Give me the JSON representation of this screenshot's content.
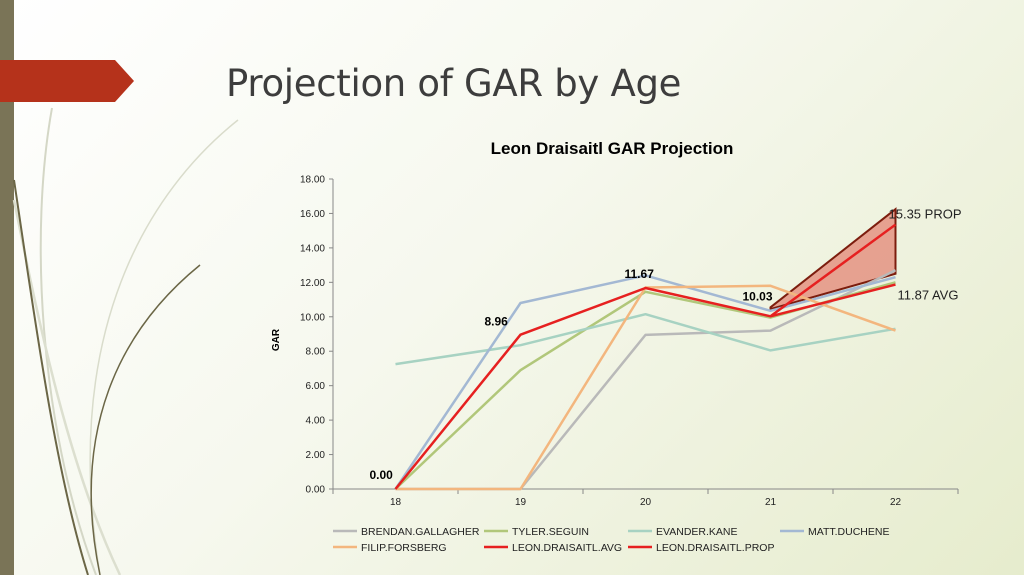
{
  "slide": {
    "title": "Projection of GAR by Age"
  },
  "colors": {
    "left_bar": "#7a7457",
    "red_tab": "#b5321b",
    "swoosh_light": "#d4d7c6",
    "swoosh_dark": "#6b6646",
    "band_fill": "#e07466",
    "band_outline": "#7c1d0e"
  },
  "chart_data": {
    "type": "line",
    "title": "Leon Draisaitl GAR Projection",
    "xlabel": "",
    "ylabel": "GAR",
    "x": [
      "18",
      "19",
      "20",
      "21",
      "22"
    ],
    "ylim": [
      0,
      18
    ],
    "y_ticks": [
      "0.00",
      "2.00",
      "4.00",
      "6.00",
      "8.00",
      "10.00",
      "12.00",
      "14.00",
      "16.00",
      "18.00"
    ],
    "grid": false,
    "legend_position": "bottom",
    "series": [
      {
        "name": "BRENDAN.GALLAGHER",
        "color": "#b9b9b9",
        "width": 2.5,
        "values": [
          0,
          0,
          8.95,
          9.2,
          12.7
        ]
      },
      {
        "name": "TYLER.SEGUIN",
        "color": "#b1c77a",
        "width": 2.5,
        "values": [
          0,
          6.9,
          11.45,
          9.95,
          12.0
        ]
      },
      {
        "name": "EVANDER.KANE",
        "color": "#a7d2c2",
        "width": 2.5,
        "values": [
          7.25,
          8.35,
          10.15,
          8.05,
          9.3
        ]
      },
      {
        "name": "MATT.DUCHENE",
        "color": "#a3b8d3",
        "width": 2.5,
        "values": [
          0,
          10.8,
          12.4,
          10.35,
          12.3
        ]
      },
      {
        "name": "FILIP.FORSBERG",
        "color": "#f3b67e",
        "width": 2.5,
        "values": [
          0,
          0,
          11.7,
          11.8,
          9.2
        ]
      },
      {
        "name": "LEON.DRAISAITL.AVG",
        "color": "#e62020",
        "width": 2.5,
        "values": [
          0,
          8.96,
          11.67,
          10.03,
          11.87
        ]
      },
      {
        "name": "LEON.DRAISAITL.PROP",
        "color": "#e62020",
        "width": 2.5,
        "values": [
          null,
          null,
          null,
          10.03,
          15.35
        ]
      }
    ],
    "projection_band": {
      "from_x": "21",
      "to_x": "22",
      "from_lower": 10.45,
      "from_upper": 10.55,
      "to_lower": 12.5,
      "to_upper": 16.25
    },
    "data_labels": [
      {
        "x_index": 0,
        "y": 0.0,
        "text": "0.00"
      },
      {
        "x_index": 1,
        "y": 8.96,
        "text": "8.96"
      },
      {
        "x_index": 2,
        "y": 11.67,
        "text": "11.67"
      },
      {
        "x_index": 3,
        "y": 10.03,
        "text": "10.03"
      }
    ],
    "annotations": [
      {
        "x_index": 4,
        "y": 15.35,
        "text": "15.35 PROP"
      },
      {
        "x_index": 4,
        "y": 11.87,
        "text": "11.87 AVG"
      }
    ]
  }
}
